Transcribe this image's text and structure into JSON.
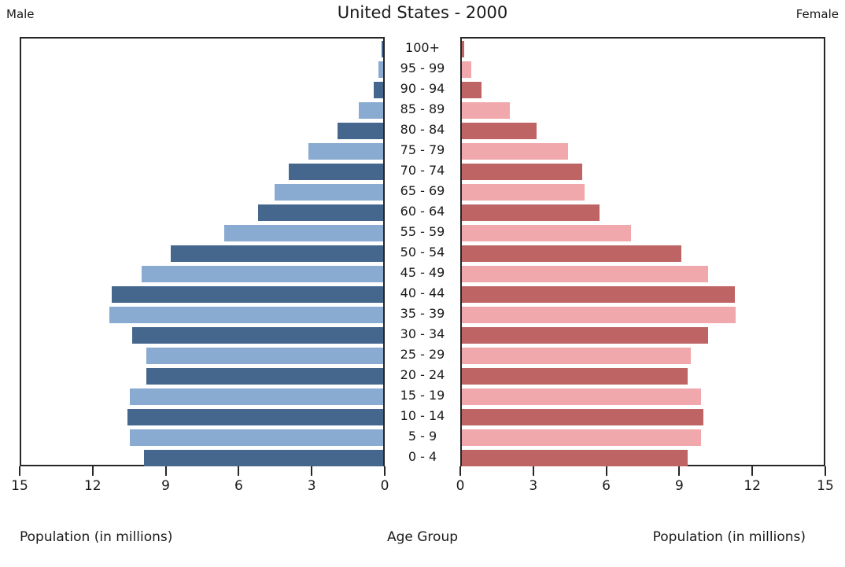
{
  "title": "United States - 2000",
  "left_header": "Male",
  "right_header": "Female",
  "captions": {
    "left": "Population (in millions)",
    "center": "Age Group",
    "right": "Population (in millions)"
  },
  "chart_data": {
    "type": "bar",
    "subtype": "population-pyramid",
    "title": "United States - 2000",
    "orientation": "horizontal",
    "categories": [
      "100+",
      "95 - 99",
      "90 - 94",
      "85 - 89",
      "80 - 84",
      "75 - 79",
      "70 - 74",
      "65 - 69",
      "60 - 64",
      "55 - 59",
      "50 - 54",
      "45 - 49",
      "40 - 44",
      "35 - 39",
      "30 - 34",
      "25 - 29",
      "20 - 24",
      "15 - 19",
      "10 - 14",
      "5 - 9",
      "0 - 4"
    ],
    "categories_order": "top-to-bottom",
    "series": [
      {
        "name": "Male",
        "side": "left",
        "values": [
          0.05,
          0.2,
          0.4,
          1.0,
          1.9,
          3.1,
          3.9,
          4.5,
          5.2,
          6.6,
          8.8,
          10.0,
          11.25,
          11.35,
          10.4,
          9.8,
          9.8,
          10.5,
          10.6,
          10.5,
          9.9
        ]
      },
      {
        "name": "Female",
        "side": "right",
        "values": [
          0.1,
          0.4,
          0.8,
          2.0,
          3.1,
          4.4,
          5.0,
          5.1,
          5.7,
          7.0,
          9.1,
          10.2,
          11.3,
          11.35,
          10.2,
          9.5,
          9.35,
          9.9,
          10.0,
          9.9,
          9.35
        ]
      }
    ],
    "xlim": [
      0,
      15
    ],
    "x_ticks_left": [
      15,
      12,
      9,
      6,
      3,
      0
    ],
    "x_ticks_right": [
      0,
      3,
      6,
      9,
      12,
      15
    ],
    "xlabel_left": "Population (in millions)",
    "xlabel_right": "Population (in millions)",
    "center_axis_label": "Age Group",
    "grid": false,
    "legend": "none",
    "bar_color_rule": "rows alternate dark/light starting dark at 100+",
    "colors": {
      "male_dark": "#45678e",
      "male_light": "#89aad1",
      "female_dark": "#bf6465",
      "female_light": "#f1a8ac",
      "axis": "#262626",
      "text": "#1a1a1a",
      "background": "#ffffff"
    }
  }
}
